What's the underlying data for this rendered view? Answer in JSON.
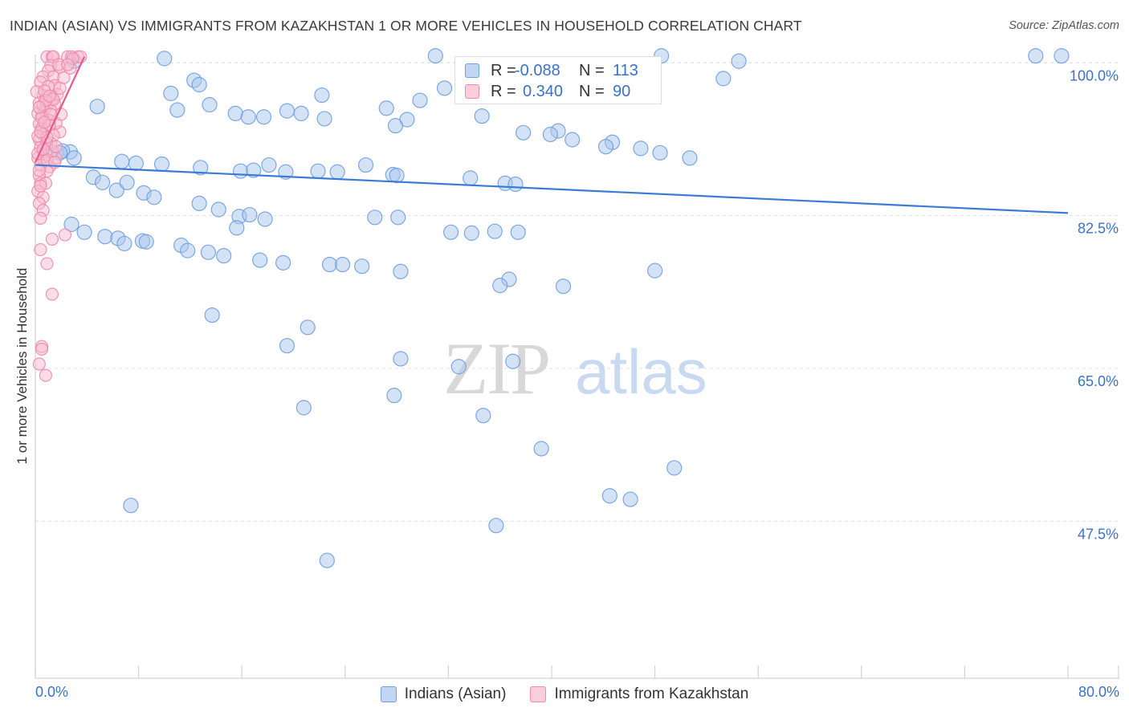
{
  "title": "INDIAN (ASIAN) VS IMMIGRANTS FROM KAZAKHSTAN 1 OR MORE VEHICLES IN HOUSEHOLD CORRELATION CHART",
  "source": "Source: ZipAtlas.com",
  "watermark": {
    "zip": "ZIP",
    "atlas": "atlas"
  },
  "legend": {
    "r_label": "R =",
    "n_label": "N =",
    "rows": [
      {
        "r": "-0.088",
        "n": "113"
      },
      {
        "r": "0.340",
        "n": "90"
      }
    ]
  },
  "bottom_legend": [
    "Indians (Asian)",
    "Immigrants from Kazakhstan"
  ],
  "colors": {
    "blue_fill": "#a9c6ee",
    "blue_stroke": "#6f9fe0",
    "blue_line": "#3a7bd5",
    "pink_fill": "#f6bccf",
    "pink_stroke": "#ee8aaa",
    "pink_line": "#e8588a",
    "tick_text": "#3a72c8",
    "grid": "#dde2ea"
  },
  "chart_data": {
    "type": "scatter",
    "title": "INDIAN (ASIAN) VS IMMIGRANTS FROM KAZAKHSTAN 1 OR MORE VEHICLES IN HOUSEHOLD CORRELATION CHART",
    "xlabel": "",
    "ylabel": "1 or more Vehicles in Household",
    "xlim": [
      0,
      80
    ],
    "ylim": [
      29.5,
      101.5
    ],
    "x_tick_labels": [
      "0.0%",
      "80.0%"
    ],
    "y_ticks": [
      100.0,
      82.5,
      65.0,
      47.5
    ],
    "y_tick_labels": [
      "100.0%",
      "82.5%",
      "65.0%",
      "47.5%"
    ],
    "series": [
      {
        "name": "Indians (Asian)",
        "r": -0.088,
        "n": 113,
        "trend": [
          [
            0,
            88.3
          ],
          [
            80,
            82.8
          ]
        ],
        "points": [
          [
            31,
            100.8
          ],
          [
            48.5,
            100.8
          ],
          [
            77.5,
            100.8
          ],
          [
            79.5,
            100.8
          ],
          [
            54.5,
            100.2
          ],
          [
            10,
            100.5
          ],
          [
            3,
            100.2
          ],
          [
            45.5,
            98.9
          ],
          [
            53.3,
            98.2
          ],
          [
            12.3,
            98
          ],
          [
            12.7,
            97.5
          ],
          [
            10.5,
            96.5
          ],
          [
            31.7,
            97.1
          ],
          [
            22.2,
            96.3
          ],
          [
            29.8,
            95.7
          ],
          [
            4.8,
            95
          ],
          [
            11,
            94.6
          ],
          [
            13.5,
            95.2
          ],
          [
            15.5,
            94.2
          ],
          [
            16.5,
            93.8
          ],
          [
            19.5,
            94.5
          ],
          [
            17.7,
            93.8
          ],
          [
            20.6,
            94.2
          ],
          [
            22.4,
            93.6
          ],
          [
            27.2,
            94.8
          ],
          [
            28.8,
            93.5
          ],
          [
            27.9,
            92.8
          ],
          [
            34.6,
            93.9
          ],
          [
            40.5,
            92.2
          ],
          [
            37.8,
            92
          ],
          [
            39.9,
            91.8
          ],
          [
            41.6,
            91.2
          ],
          [
            44.7,
            90.9
          ],
          [
            44.2,
            90.4
          ],
          [
            46.9,
            90.2
          ],
          [
            48.4,
            89.7
          ],
          [
            50.7,
            89.1
          ],
          [
            0.8,
            90
          ],
          [
            2.7,
            89.8
          ],
          [
            2.1,
            89.9
          ],
          [
            1.9,
            89.7
          ],
          [
            3,
            89.1
          ],
          [
            6.7,
            88.7
          ],
          [
            7.8,
            88.5
          ],
          [
            9.8,
            88.4
          ],
          [
            12.8,
            88
          ],
          [
            15.9,
            87.6
          ],
          [
            16.9,
            87.7
          ],
          [
            18.1,
            88.3
          ],
          [
            19.4,
            87.5
          ],
          [
            21.9,
            87.6
          ],
          [
            23.4,
            87.5
          ],
          [
            25.6,
            88.3
          ],
          [
            27.7,
            87.2
          ],
          [
            28,
            87.1
          ],
          [
            33.7,
            86.8
          ],
          [
            36.4,
            86.2
          ],
          [
            37.2,
            86.1
          ],
          [
            4.5,
            86.9
          ],
          [
            5.2,
            86.3
          ],
          [
            6.3,
            85.4
          ],
          [
            7.1,
            86.3
          ],
          [
            8.4,
            85.1
          ],
          [
            9.2,
            84.6
          ],
          [
            12.7,
            83.9
          ],
          [
            14.2,
            83.2
          ],
          [
            15.8,
            82.4
          ],
          [
            15.6,
            81.1
          ],
          [
            16.6,
            82.6
          ],
          [
            17.8,
            82.1
          ],
          [
            26.3,
            82.3
          ],
          [
            28.1,
            82.3
          ],
          [
            32.2,
            80.6
          ],
          [
            33.8,
            80.5
          ],
          [
            35.6,
            80.7
          ],
          [
            37.4,
            80.6
          ],
          [
            2.8,
            81.5
          ],
          [
            3.8,
            80.6
          ],
          [
            5.4,
            80.1
          ],
          [
            6.4,
            79.9
          ],
          [
            6.9,
            79.3
          ],
          [
            8.3,
            79.6
          ],
          [
            8.6,
            79.5
          ],
          [
            11.3,
            79.1
          ],
          [
            11.8,
            78.5
          ],
          [
            13.4,
            78.3
          ],
          [
            14.6,
            77.9
          ],
          [
            17.4,
            77.4
          ],
          [
            19.2,
            77.1
          ],
          [
            22.8,
            76.9
          ],
          [
            23.8,
            76.9
          ],
          [
            25.3,
            76.7
          ],
          [
            28.3,
            76.1
          ],
          [
            36.7,
            75.2
          ],
          [
            36,
            74.5
          ],
          [
            40.9,
            74.4
          ],
          [
            48,
            76.2
          ],
          [
            13.7,
            71.1
          ],
          [
            21.1,
            69.7
          ],
          [
            19.5,
            67.6
          ],
          [
            28.3,
            66.1
          ],
          [
            20.8,
            60.5
          ],
          [
            37,
            65.8
          ],
          [
            32.8,
            65.2
          ],
          [
            27.8,
            61.9
          ],
          [
            34.7,
            59.6
          ],
          [
            39.2,
            55.8
          ],
          [
            49.5,
            53.6
          ],
          [
            44.5,
            50.4
          ],
          [
            46.1,
            50
          ],
          [
            7.4,
            49.3
          ],
          [
            35.7,
            47
          ],
          [
            22.6,
            43
          ]
        ]
      },
      {
        "name": "Immigrants from Kazakhstan",
        "r": 0.34,
        "n": 90,
        "trend": [
          [
            0,
            88.6
          ],
          [
            3.8,
            100.7
          ]
        ],
        "points": [
          [
            0.9,
            100.7
          ],
          [
            1.3,
            100.7
          ],
          [
            1.4,
            100.7
          ],
          [
            2.5,
            100.7
          ],
          [
            2.8,
            100.7
          ],
          [
            3.3,
            100.7
          ],
          [
            3.5,
            100.7
          ],
          [
            1.2,
            99.7
          ],
          [
            1.9,
            99.5
          ],
          [
            2.7,
            99.4
          ],
          [
            1,
            99.1
          ],
          [
            0.6,
            98.4
          ],
          [
            1.4,
            98.4
          ],
          [
            0.4,
            97.8
          ],
          [
            1.5,
            97.4
          ],
          [
            0.6,
            96.3
          ],
          [
            1.3,
            95.9
          ],
          [
            0.3,
            95.4
          ],
          [
            0.9,
            95.1
          ],
          [
            1.5,
            95.3
          ],
          [
            0.7,
            94.6
          ],
          [
            1.2,
            94.5
          ],
          [
            0.5,
            94
          ],
          [
            1.1,
            93.4
          ],
          [
            0.3,
            93
          ],
          [
            0.8,
            92.4
          ],
          [
            1.9,
            92.1
          ],
          [
            0.6,
            91.8
          ],
          [
            1.4,
            91.7
          ],
          [
            0.3,
            91.2
          ],
          [
            1.2,
            90.8
          ],
          [
            0.4,
            90.3
          ],
          [
            0.8,
            89.6
          ],
          [
            0.2,
            89.1
          ],
          [
            0.7,
            88.8
          ],
          [
            1.1,
            88.1
          ],
          [
            1.6,
            89.1
          ],
          [
            0.9,
            87.6
          ],
          [
            0.3,
            87.1
          ],
          [
            0.4,
            86.2
          ],
          [
            0.8,
            86.2
          ],
          [
            0.2,
            85.3
          ],
          [
            0.6,
            84.6
          ],
          [
            0.3,
            83.9
          ],
          [
            0.6,
            83.1
          ],
          [
            0.4,
            82.2
          ],
          [
            2.3,
            80.3
          ],
          [
            1.3,
            79.8
          ],
          [
            0.4,
            78.6
          ],
          [
            0.9,
            77
          ],
          [
            1.3,
            73.5
          ],
          [
            0.5,
            67.5
          ],
          [
            0.5,
            67.2
          ],
          [
            0.3,
            65.5
          ],
          [
            0.8,
            64.2
          ],
          [
            0.1,
            96.7
          ],
          [
            0.2,
            94.2
          ],
          [
            0.5,
            92.5
          ],
          [
            0.9,
            90.7
          ],
          [
            1.6,
            93.1
          ],
          [
            2,
            94.1
          ],
          [
            0.4,
            88.3
          ],
          [
            0.2,
            91.6
          ],
          [
            1.7,
            96.4
          ],
          [
            1,
            97.3
          ],
          [
            0.6,
            95.2
          ],
          [
            2.2,
            98.3
          ],
          [
            1.8,
            99.8
          ],
          [
            1.1,
            92.9
          ],
          [
            0.3,
            87.7
          ],
          [
            1.3,
            89.9
          ],
          [
            0.9,
            91.5
          ],
          [
            0.5,
            93.7
          ],
          [
            1.6,
            90.4
          ],
          [
            0.7,
            96.8
          ],
          [
            1.4,
            95.8
          ],
          [
            2.9,
            100.5
          ],
          [
            0.2,
            89.6
          ],
          [
            0.4,
            85.9
          ],
          [
            0.9,
            88.9
          ],
          [
            0.6,
            90.1
          ],
          [
            1.5,
            88.6
          ],
          [
            1.2,
            94.1
          ],
          [
            0.8,
            95.7
          ],
          [
            0.4,
            92.1
          ],
          [
            0.7,
            93.2
          ],
          [
            1.9,
            97.1
          ],
          [
            2.5,
            99.8
          ],
          [
            0.3,
            94.9
          ],
          [
            1.1,
            96.2
          ]
        ]
      }
    ]
  }
}
